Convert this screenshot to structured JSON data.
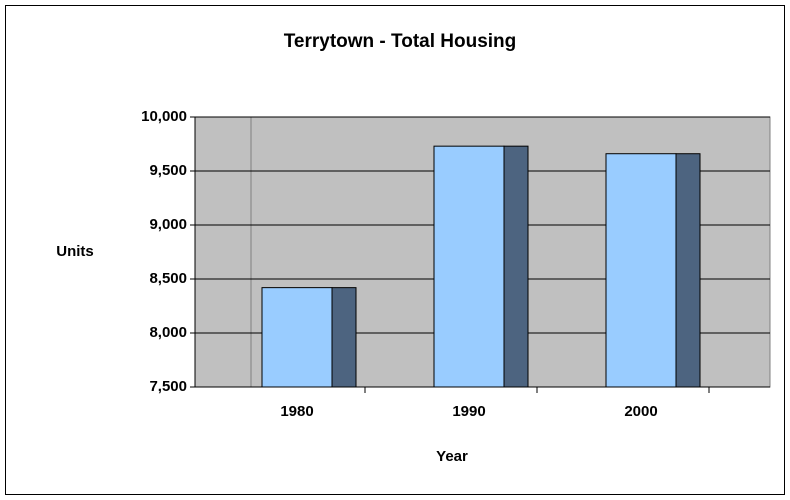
{
  "chart_data": {
    "type": "bar",
    "title": "Terrytown - Total Housing",
    "x_label": "Year",
    "y_label": "Units",
    "categories": [
      "1980",
      "1990",
      "2000"
    ],
    "values": [
      8420,
      9730,
      9660
    ],
    "color": "#99ccff",
    "side_color": "#4d6480",
    "ylim": [
      7500,
      10000
    ],
    "yticks": [
      {
        "value": 7500,
        "label": "7,500"
      },
      {
        "value": 8000,
        "label": "8,000"
      },
      {
        "value": 8500,
        "label": "8,500"
      },
      {
        "value": 9000,
        "label": "9,000"
      },
      {
        "value": 9500,
        "label": "9,500"
      },
      {
        "value": 10000,
        "label": "10,000"
      }
    ],
    "grid": true
  }
}
